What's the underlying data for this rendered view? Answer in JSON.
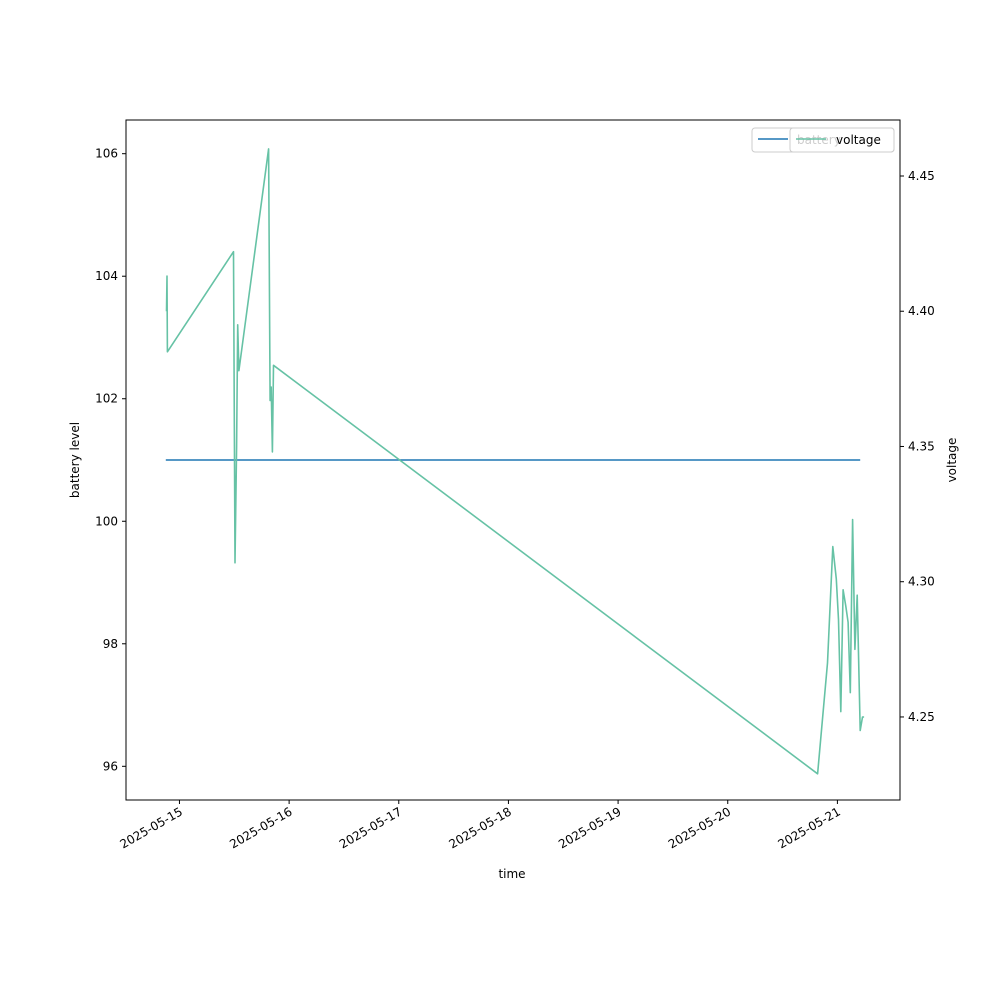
{
  "chart_data": {
    "type": "line",
    "xlabel": "time",
    "ylabel_left": "battery level",
    "ylabel_right": "voltage",
    "xlim": [
      "2025-05-14 12:18",
      "2025-05-21 13:42"
    ],
    "ylim_left": [
      95.45,
      106.55
    ],
    "ylim_right": [
      4.2193,
      4.4707
    ],
    "x_ticks": [
      "2025-05-15",
      "2025-05-16",
      "2025-05-17",
      "2025-05-18",
      "2025-05-19",
      "2025-05-20",
      "2025-05-21"
    ],
    "y_ticks_left": [
      96,
      98,
      100,
      102,
      104,
      106
    ],
    "y_ticks_right": [
      "4.25",
      "4.30",
      "4.35",
      "4.40",
      "4.45"
    ],
    "legend_placement": "top-right",
    "grid": false,
    "series": [
      {
        "name": "battery",
        "axis": "left",
        "color": "#1f77b4",
        "points": [
          [
            "2025-05-14 21:00",
            101
          ],
          [
            "2025-05-21 05:00",
            101
          ]
        ]
      },
      {
        "name": "voltage",
        "axis": "right",
        "color": "#66c2a5",
        "points": [
          [
            "2025-05-14 21:10",
            4.4
          ],
          [
            "2025-05-14 21:16",
            4.413
          ],
          [
            "2025-05-14 21:22",
            4.385
          ],
          [
            "2025-05-15 11:50",
            4.422
          ],
          [
            "2025-05-15 12:10",
            4.307
          ],
          [
            "2025-05-15 12:30",
            4.35
          ],
          [
            "2025-05-15 12:45",
            4.395
          ],
          [
            "2025-05-15 13:00",
            4.378
          ],
          [
            "2025-05-15 19:30",
            4.46
          ],
          [
            "2025-05-15 19:50",
            4.367
          ],
          [
            "2025-05-15 20:05",
            4.372
          ],
          [
            "2025-05-15 20:20",
            4.348
          ],
          [
            "2025-05-15 20:35",
            4.38
          ],
          [
            "2025-05-20 19:40",
            4.229
          ],
          [
            "2025-05-20 21:50",
            4.27
          ],
          [
            "2025-05-20 23:00",
            4.313
          ],
          [
            "2025-05-20 23:45",
            4.301
          ],
          [
            "2025-05-21 00:15",
            4.286
          ],
          [
            "2025-05-21 00:45",
            4.252
          ],
          [
            "2025-05-21 01:15",
            4.297
          ],
          [
            "2025-05-21 01:50",
            4.291
          ],
          [
            "2025-05-21 02:20",
            4.285
          ],
          [
            "2025-05-21 02:50",
            4.259
          ],
          [
            "2025-05-21 03:20",
            4.323
          ],
          [
            "2025-05-21 03:50",
            4.275
          ],
          [
            "2025-05-21 04:20",
            4.295
          ],
          [
            "2025-05-21 04:40",
            4.27
          ],
          [
            "2025-05-21 05:00",
            4.245
          ],
          [
            "2025-05-21 05:30",
            4.25
          ],
          [
            "2025-05-21 05:50",
            4.25
          ]
        ]
      }
    ]
  }
}
